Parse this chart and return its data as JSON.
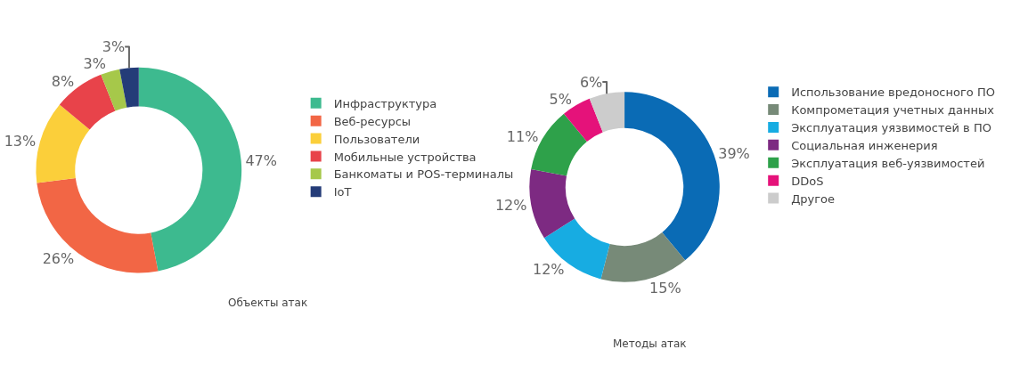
{
  "chart_data": [
    {
      "type": "donut",
      "title": "Объекты атак",
      "categories": [
        "Инфраструктура",
        "Веб-ресурсы",
        "Пользователи",
        "Мобильные устройства",
        "Банкоматы и POS-терминалы",
        "IoT"
      ],
      "values": [
        47,
        26,
        13,
        8,
        3,
        3
      ],
      "value_labels": [
        "47%",
        "26%",
        "13%",
        "8%",
        "3%",
        "3%"
      ],
      "colors": [
        "#3dba8f",
        "#f26645",
        "#fbcf3a",
        "#e8434a",
        "#a6c84a",
        "#243c78"
      ],
      "legend": "right"
    },
    {
      "type": "donut",
      "title": "Методы атак",
      "categories": [
        "Использование вредоносного ПО",
        "Компрометация учетных данных",
        "Эксплуатация уязвимостей в ПО",
        "Социальная инженерия",
        "Эксплуатация веб-уязвимостей",
        "DDoS",
        "Другое"
      ],
      "values": [
        39,
        15,
        12,
        12,
        11,
        5,
        6
      ],
      "value_labels": [
        "39%",
        "15%",
        "12%",
        "12%",
        "11%",
        "5%",
        "6%"
      ],
      "colors": [
        "#0a6bb5",
        "#778a78",
        "#17ace2",
        "#7d2a82",
        "#2ea14a",
        "#e5127a",
        "#cccccc"
      ],
      "legend": "right"
    }
  ]
}
